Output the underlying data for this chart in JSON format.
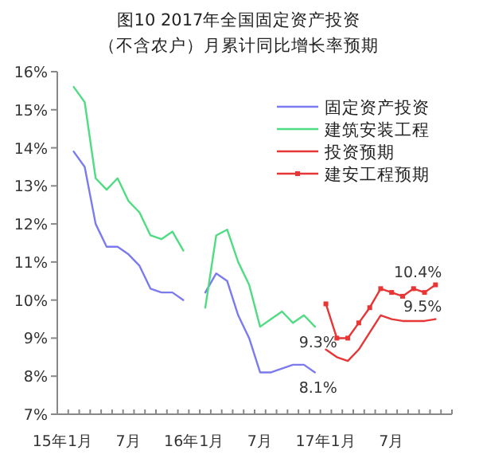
{
  "chart_data": {
    "type": "line",
    "title": "图10  2017年全国固定资产投资",
    "subtitle": "（不含农户）月累计同比增长率预期",
    "categories": [
      "15年1月",
      null,
      null,
      null,
      null,
      null,
      "7月",
      null,
      null,
      null,
      null,
      null,
      "16年1月",
      null,
      null,
      null,
      null,
      null,
      "7月",
      null,
      null,
      null,
      null,
      null,
      "17年1月",
      null,
      null,
      null,
      null,
      null,
      "7月",
      null,
      null,
      null,
      null,
      null
    ],
    "ylim": [
      7,
      16
    ],
    "yticks": [
      {
        "value": 7,
        "label": "7%"
      },
      {
        "value": 8,
        "label": "8%"
      },
      {
        "value": 9,
        "label": "9%"
      },
      {
        "value": 10,
        "label": "10%"
      },
      {
        "value": 11,
        "label": "11%"
      },
      {
        "value": 12,
        "label": "12%"
      },
      {
        "value": 13,
        "label": "13%"
      },
      {
        "value": 14,
        "label": "14%"
      },
      {
        "value": 15,
        "label": "15%"
      },
      {
        "value": 16,
        "label": "16%"
      }
    ],
    "grid": false,
    "legend": "top right",
    "series": [
      {
        "name": "固定资产投资",
        "color": "#7b7bef",
        "marker": "none",
        "values": [
          null,
          13.9,
          13.5,
          12.0,
          11.4,
          11.4,
          11.2,
          10.9,
          10.3,
          10.2,
          10.2,
          10.0,
          null,
          10.2,
          10.7,
          10.5,
          9.6,
          9.0,
          8.1,
          8.1,
          8.2,
          8.3,
          8.3,
          8.1,
          null,
          null,
          null,
          null,
          null,
          null,
          null,
          null,
          null,
          null,
          null,
          null
        ],
        "value_labels": [
          null,
          null,
          null,
          null,
          null,
          null,
          null,
          null,
          null,
          null,
          null,
          null,
          null,
          null,
          null,
          null,
          null,
          null,
          null,
          null,
          null,
          null,
          null,
          "8.1%",
          null,
          null,
          null,
          null,
          null,
          null,
          null,
          null,
          null,
          null,
          null,
          null
        ]
      },
      {
        "name": "建筑安装工程",
        "color": "#4fdc82",
        "marker": "none",
        "values": [
          null,
          15.6,
          15.2,
          13.2,
          12.9,
          13.2,
          12.6,
          12.3,
          11.7,
          11.6,
          11.8,
          11.3,
          null,
          9.8,
          11.7,
          11.85,
          11.0,
          10.4,
          9.3,
          9.5,
          9.7,
          9.4,
          9.6,
          9.3,
          null,
          null,
          null,
          null,
          null,
          null,
          null,
          null,
          null,
          null,
          null,
          null
        ],
        "value_labels": [
          null,
          null,
          null,
          null,
          null,
          null,
          null,
          null,
          null,
          null,
          null,
          null,
          null,
          null,
          null,
          null,
          null,
          null,
          null,
          null,
          null,
          null,
          null,
          "9.3%",
          null,
          null,
          null,
          null,
          null,
          null,
          null,
          null,
          null,
          null,
          null,
          null
        ]
      },
      {
        "name": "投资预期",
        "color": "#e83535",
        "marker": "none",
        "values": [
          null,
          null,
          null,
          null,
          null,
          null,
          null,
          null,
          null,
          null,
          null,
          null,
          null,
          null,
          null,
          null,
          null,
          null,
          null,
          null,
          null,
          null,
          null,
          null,
          8.7,
          8.5,
          8.4,
          8.7,
          9.15,
          9.6,
          9.5,
          9.45,
          9.45,
          9.45,
          9.5,
          null
        ],
        "value_labels": [
          null,
          null,
          null,
          null,
          null,
          null,
          null,
          null,
          null,
          null,
          null,
          null,
          null,
          null,
          null,
          null,
          null,
          null,
          null,
          null,
          null,
          null,
          null,
          null,
          null,
          null,
          null,
          null,
          null,
          null,
          null,
          null,
          null,
          null,
          "9.5%",
          null
        ]
      },
      {
        "name": "建安工程预期",
        "color": "#e83535",
        "marker": "square",
        "values": [
          null,
          null,
          null,
          null,
          null,
          null,
          null,
          null,
          null,
          null,
          null,
          null,
          null,
          null,
          null,
          null,
          null,
          null,
          null,
          null,
          null,
          null,
          null,
          null,
          9.9,
          9.0,
          9.0,
          9.4,
          9.8,
          10.3,
          10.2,
          10.1,
          10.3,
          10.2,
          10.4,
          null
        ],
        "value_labels": [
          null,
          null,
          null,
          null,
          null,
          null,
          null,
          null,
          null,
          null,
          null,
          null,
          null,
          null,
          null,
          null,
          null,
          null,
          null,
          null,
          null,
          null,
          null,
          null,
          null,
          null,
          null,
          null,
          null,
          null,
          null,
          null,
          null,
          null,
          "10.4%",
          null
        ]
      }
    ]
  }
}
